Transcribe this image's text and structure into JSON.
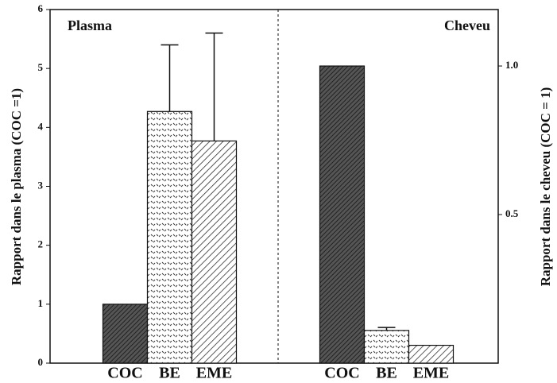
{
  "chart_data": [
    {
      "type": "bar",
      "title": "Plasma",
      "y_label": "Rapport dans le plasma (COC =1)",
      "categories": [
        "COC",
        "BE",
        "EME"
      ],
      "values": [
        1,
        4.27,
        3.77
      ],
      "errors": [
        0,
        1.13,
        1.83
      ],
      "ylim": [
        0,
        6
      ],
      "yticks": [
        0,
        1,
        2,
        3,
        4,
        5,
        6
      ],
      "axis_side": "left"
    },
    {
      "type": "bar",
      "title": "Cheveu",
      "y_label": "Rapport dans le cheveu (COC = 1)",
      "categories": [
        "COC",
        "BE",
        "EME"
      ],
      "values": [
        1,
        0.11,
        0.06
      ],
      "errors": [
        0,
        0.01,
        0
      ],
      "ylim": [
        0,
        1.19
      ],
      "yticks": [
        0.5,
        {
          "value": 1,
          "label": "1.0"
        }
      ],
      "axis_side": "right"
    }
  ]
}
